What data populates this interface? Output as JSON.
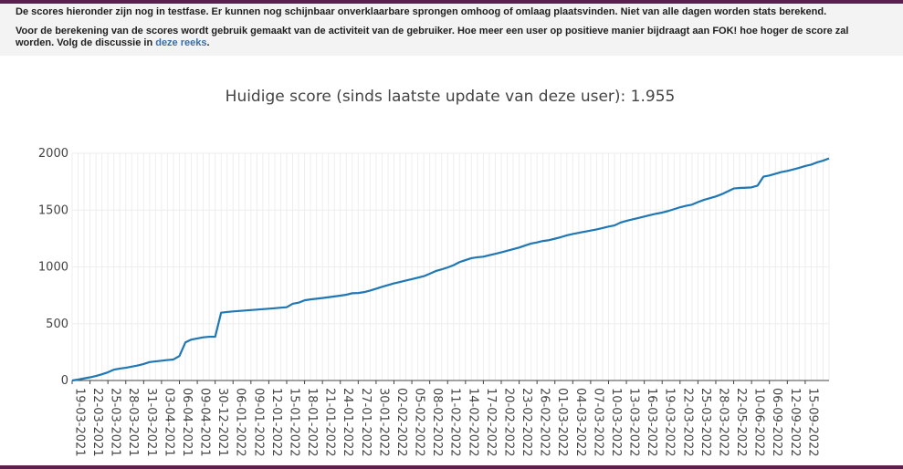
{
  "notice": {
    "line1": "De scores hieronder zijn nog in testfase. Er kunnen nog schijnbaar onverklaarbare sprongen omhoog of omlaag plaatsvinden. Niet van alle dagen worden stats berekend.",
    "line2_before": "Voor de berekening van de scores wordt gebruik gemaakt van de activiteit van de gebruiker. Hoe meer een user op positieve manier bijdraagt aan FOK! hoe hoger de score zal worden. Volg de discussie in ",
    "line2_link": "deze reeks",
    "line2_after": "."
  },
  "colors": {
    "line": "#1f77b4",
    "grid": "#eeeeee",
    "frame": "#5a1f4f"
  },
  "chart_data": {
    "type": "line",
    "title": "Huidige score (sinds laatste update van deze user): 1.955",
    "xlabel": "",
    "ylabel": "",
    "ylim": [
      0,
      2000
    ],
    "yticks": [
      0,
      500,
      1000,
      1500,
      2000
    ],
    "ytick_labels": [
      "0",
      "500",
      "1000",
      "1500",
      "2000"
    ],
    "grid": true,
    "xtick_labels": [
      "19-03-2021",
      "22-03-2021",
      "25-03-2021",
      "28-03-2021",
      "31-03-2021",
      "03-04-2021",
      "06-04-2021",
      "09-04-2021",
      "30-12-2021",
      "06-01-2022",
      "09-01-2022",
      "12-01-2022",
      "15-01-2022",
      "18-01-2022",
      "21-01-2022",
      "24-01-2022",
      "27-01-2022",
      "30-01-2022",
      "02-02-2022",
      "05-02-2022",
      "08-02-2022",
      "11-02-2022",
      "14-02-2022",
      "17-02-2022",
      "20-02-2022",
      "23-02-2022",
      "26-02-2022",
      "01-03-2022",
      "04-03-2022",
      "07-03-2022",
      "10-03-2022",
      "13-03-2022",
      "16-03-2022",
      "19-03-2022",
      "22-03-2022",
      "25-03-2022",
      "28-03-2022",
      "22-05-2022",
      "10-06-2022",
      "06-09-2022",
      "12-09-2022",
      "15-09-2022"
    ],
    "xtick_positions": [
      0,
      3,
      6,
      9,
      12,
      15,
      18,
      21,
      24,
      27,
      30,
      33,
      36,
      39,
      42,
      45,
      48,
      51,
      54,
      57,
      60,
      63,
      66,
      69,
      72,
      75,
      78,
      81,
      84,
      87,
      90,
      93,
      96,
      99,
      102,
      105,
      108,
      111,
      114,
      117,
      120,
      123
    ],
    "series": [
      {
        "name": "",
        "values": [
          0,
          8,
          18,
          28,
          40,
          55,
          72,
          95,
          105,
          112,
          122,
          132,
          145,
          162,
          168,
          174,
          180,
          185,
          215,
          335,
          360,
          370,
          380,
          385,
          385,
          597,
          603,
          608,
          612,
          616,
          620,
          624,
          628,
          632,
          636,
          641,
          645,
          675,
          685,
          706,
          714,
          720,
          726,
          733,
          740,
          747,
          755,
          768,
          770,
          778,
          792,
          808,
          825,
          840,
          855,
          867,
          880,
          892,
          905,
          918,
          940,
          963,
          978,
          995,
          1015,
          1042,
          1060,
          1077,
          1085,
          1090,
          1103,
          1115,
          1128,
          1142,
          1156,
          1170,
          1188,
          1205,
          1215,
          1228,
          1235,
          1248,
          1262,
          1278,
          1290,
          1300,
          1310,
          1320,
          1330,
          1342,
          1355,
          1365,
          1390,
          1405,
          1418,
          1430,
          1443,
          1456,
          1468,
          1478,
          1492,
          1508,
          1525,
          1538,
          1548,
          1570,
          1590,
          1605,
          1620,
          1640,
          1665,
          1690,
          1695,
          1697,
          1700,
          1715,
          1795,
          1805,
          1820,
          1835,
          1845,
          1858,
          1872,
          1888,
          1900,
          1920,
          1935,
          1955
        ]
      }
    ]
  }
}
